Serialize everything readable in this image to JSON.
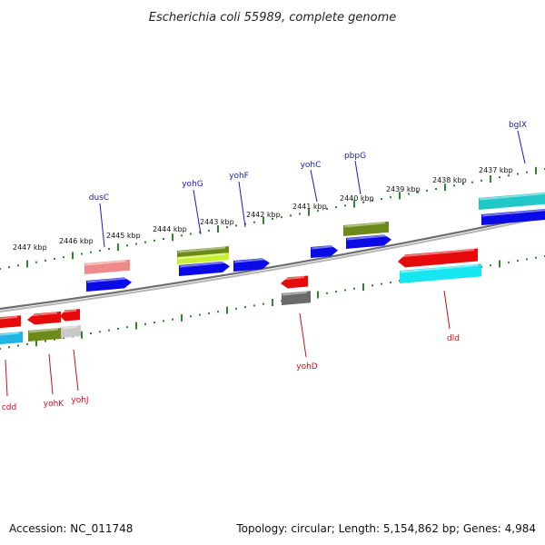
{
  "title": "Escherichia coli 55989, complete genome",
  "footer": {
    "accession": "Accession: NC_011748",
    "summary": "Topology: circular; Length: 5,154,862 bp; Genes: 4,984"
  },
  "ruler_labels": [
    "2447 kbp",
    "2446 kbp",
    "2445 kbp",
    "2444 kbp",
    "2443 kbp",
    "2442 kbp",
    "2441 kbp",
    "2440 kbp",
    "2439 kbp",
    "2438 kbp",
    "2437 kbp"
  ],
  "genes_upper": [
    "dusC",
    "yohG",
    "yohF",
    "yohC",
    "pbpG",
    "bglX"
  ],
  "genes_lower": [
    "cdd",
    "yohK",
    "yohJ",
    "yohD",
    "dld"
  ],
  "colors": {
    "upper_label": "#1a1acc",
    "lower_label": "#cc1111",
    "tick": "#2a8a2a",
    "backbone": "#8a8a8a",
    "cds_blue": "#0a0ae6",
    "cds_red": "#e60a0a",
    "cds_cyan": "#16e6f0",
    "cds_olive": "#6b8a1a",
    "cds_pink": "#f08a8a",
    "cds_gray": "#6a6a6a",
    "cds_lightgray": "#c8c8c8",
    "cds_teal": "#22c8c8",
    "cds_sky": "#22b4e6",
    "cds_lime": "#c8f032"
  }
}
